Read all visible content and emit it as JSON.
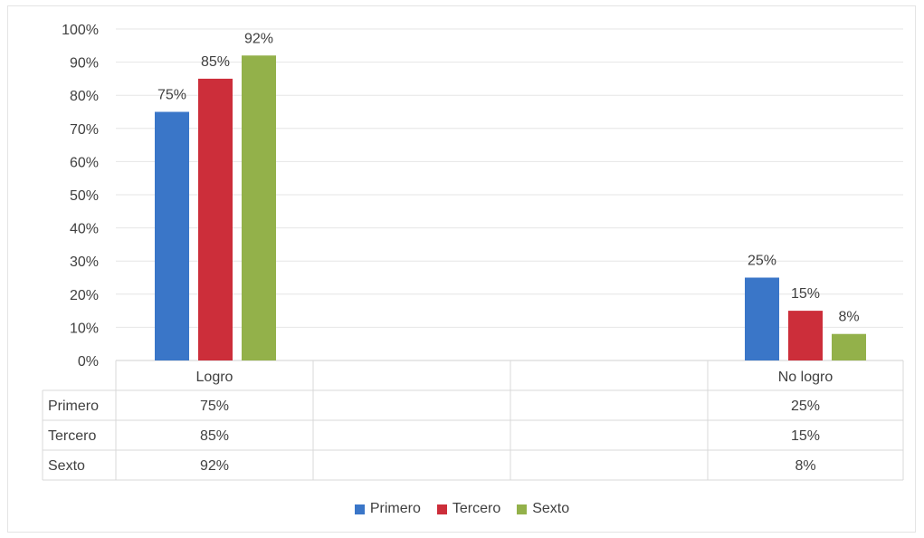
{
  "chart_data": {
    "type": "bar",
    "categories": [
      "Logro",
      "No logro"
    ],
    "series": [
      {
        "name": "Primero",
        "values": [
          75,
          25
        ],
        "labels": [
          "75%",
          "25%"
        ],
        "color": "#3a76c8"
      },
      {
        "name": "Tercero",
        "values": [
          85,
          15
        ],
        "labels": [
          "85%",
          "15%"
        ],
        "color": "#cc2e3a"
      },
      {
        "name": "Sexto",
        "values": [
          92,
          8
        ],
        "labels": [
          "92%",
          "8%"
        ],
        "color": "#93b14a"
      }
    ],
    "ylim": [
      0,
      100
    ],
    "yticks": [
      "0%",
      "10%",
      "20%",
      "30%",
      "40%",
      "50%",
      "60%",
      "70%",
      "80%",
      "90%",
      "100%"
    ],
    "grid": true,
    "data_table": true,
    "legend_position": "bottom"
  }
}
